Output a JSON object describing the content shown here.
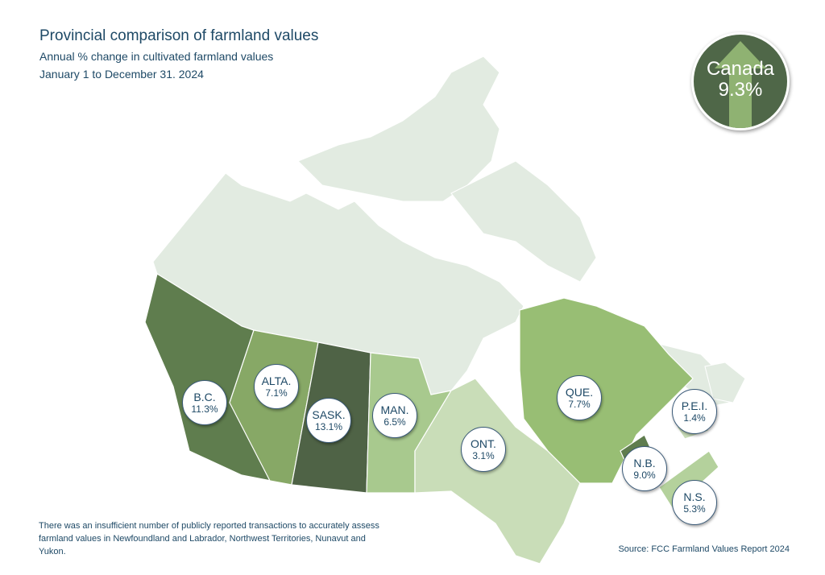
{
  "header": {
    "title": "Provincial comparison of farmland values",
    "subtitle": "Annual % change in cultivated farmland values",
    "date_range": "January 1 to December 31. 2024"
  },
  "national": {
    "name": "Canada",
    "value": "9.3%",
    "icon": "arrow-up-icon"
  },
  "provinces": [
    {
      "abbr": "B.C.",
      "value": "11.3%",
      "color": "#5f7d4e"
    },
    {
      "abbr": "ALTA.",
      "value": "7.1%",
      "color": "#87a866"
    },
    {
      "abbr": "SASK.",
      "value": "13.1%",
      "color": "#4f6346"
    },
    {
      "abbr": "MAN.",
      "value": "6.5%",
      "color": "#a8c98e"
    },
    {
      "abbr": "ONT.",
      "value": "3.1%",
      "color": "#c9ddb8"
    },
    {
      "abbr": "QUE.",
      "value": "7.7%",
      "color": "#98be74"
    },
    {
      "abbr": "P.E.I.",
      "value": "1.4%",
      "color": "#c9ddb8"
    },
    {
      "abbr": "N.B.",
      "value": "9.0%",
      "color": "#5f7d4e"
    },
    {
      "abbr": "N.S.",
      "value": "5.3%",
      "color": "#b4d19c"
    }
  ],
  "no_data_color": "#e2ebe1",
  "footnote": "There was an insufficient number of publicly  reported transactions to accurately assess farmland values in Newfoundland and Labrador, Northwest Territories, Nunavut and Yukon.",
  "source": "Source: FCC Farmland Values Report 2024"
}
